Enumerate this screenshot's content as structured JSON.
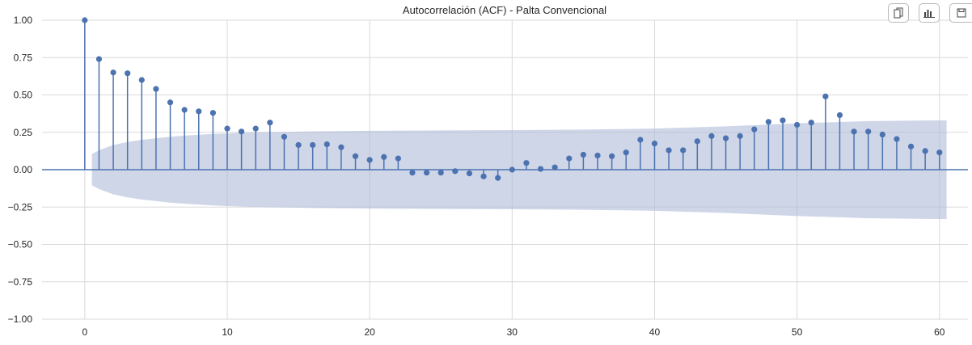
{
  "toolbar": {
    "buttons": [
      {
        "name": "copy-button",
        "icon": "copy-icon"
      },
      {
        "name": "chart-button",
        "icon": "bar-chart-icon"
      },
      {
        "name": "save-button",
        "icon": "save-icon"
      }
    ]
  },
  "chart_data": {
    "type": "stem",
    "title": "Autocorrelación (ACF) - Palta Convencional",
    "xlabel": "",
    "ylabel": "",
    "xlim": [
      -3,
      62
    ],
    "ylim": [
      -1.0,
      1.0
    ],
    "xticks": [
      0,
      10,
      20,
      30,
      40,
      50,
      60
    ],
    "xtick_labels": [
      "0",
      "10",
      "20",
      "30",
      "40",
      "50",
      "60"
    ],
    "yticks": [
      1.0,
      0.75,
      0.5,
      0.25,
      0.0,
      -0.25,
      -0.5,
      -0.75,
      -1.0
    ],
    "ytick_labels": [
      "1.00",
      "0.75",
      "0.50",
      "0.25",
      "0.00",
      "−0.25",
      "−0.50",
      "−0.75",
      "−1.00"
    ],
    "grid": true,
    "colors": {
      "stem": "#4c72b0",
      "confidence_band": "#aebbd9",
      "grid": "#d9d9d9",
      "zero_line": "#4c72b0"
    },
    "lags": [
      0,
      1,
      2,
      3,
      4,
      5,
      6,
      7,
      8,
      9,
      10,
      11,
      12,
      13,
      14,
      15,
      16,
      17,
      18,
      19,
      20,
      21,
      22,
      23,
      24,
      25,
      26,
      27,
      28,
      29,
      30,
      31,
      32,
      33,
      34,
      35,
      36,
      37,
      38,
      39,
      40,
      41,
      42,
      43,
      44,
      45,
      46,
      47,
      48,
      49,
      50,
      51,
      52,
      53,
      54,
      55,
      56,
      57,
      58,
      59,
      60
    ],
    "values": [
      1.0,
      0.74,
      0.65,
      0.645,
      0.6,
      0.54,
      0.45,
      0.4,
      0.39,
      0.38,
      0.275,
      0.255,
      0.275,
      0.315,
      0.22,
      0.165,
      0.165,
      0.17,
      0.15,
      0.09,
      0.065,
      0.085,
      0.075,
      -0.02,
      -0.02,
      -0.02,
      -0.01,
      -0.025,
      -0.045,
      -0.055,
      0.0,
      0.045,
      0.005,
      0.015,
      0.075,
      0.1,
      0.095,
      0.09,
      0.115,
      0.2,
      0.175,
      0.13,
      0.13,
      0.19,
      0.225,
      0.21,
      0.225,
      0.27,
      0.32,
      0.33,
      0.3,
      0.315,
      0.49,
      0.365,
      0.255,
      0.255,
      0.235,
      0.205,
      0.155,
      0.125,
      0.115
    ],
    "confidence_band": {
      "x": [
        0.5,
        1,
        2,
        3,
        4,
        5,
        6,
        7,
        8,
        9,
        10,
        12,
        14,
        16,
        18,
        20,
        25,
        30,
        35,
        40,
        45,
        50,
        55,
        60,
        60.5
      ],
      "upper": [
        0.105,
        0.13,
        0.165,
        0.185,
        0.2,
        0.21,
        0.22,
        0.228,
        0.234,
        0.239,
        0.243,
        0.249,
        0.253,
        0.256,
        0.258,
        0.26,
        0.263,
        0.265,
        0.268,
        0.275,
        0.29,
        0.31,
        0.325,
        0.33,
        0.33
      ]
    }
  }
}
